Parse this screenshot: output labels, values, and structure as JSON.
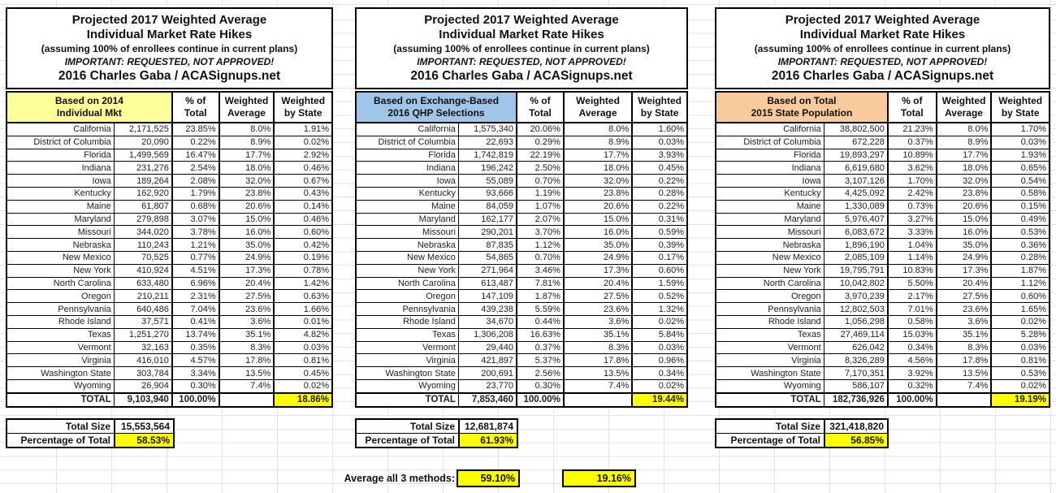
{
  "shared_title": {
    "line1": "Projected 2017 Weighted Average",
    "line2": "Individual Market Rate Hikes",
    "line3": "(assuming 100% of enrollees continue in current plans)",
    "line4": "IMPORTANT: REQUESTED, NOT APPROVED!",
    "line5": "2016 Charles Gaba / ACASignups.net"
  },
  "shared_columns": {
    "pct1": "% of",
    "pct2": "Total",
    "wavg1": "Weighted",
    "wavg2": "Average",
    "wstate1": "Weighted",
    "wstate2": "by State"
  },
  "colors": {
    "basis_yellow": "#ffff99",
    "basis_blue": "#9fc5e8",
    "basis_orange": "#f9cb9c",
    "highlight_yellow": "#ffff00"
  },
  "tables": [
    {
      "basis_line1": "Based on 2014",
      "basis_line2": "Individual Mkt",
      "basis_color": "#ffff99",
      "rows": [
        {
          "state": "California",
          "size": "2,171,525",
          "pct": "23.85%",
          "wavg": "8.0%",
          "wstate": "1.91%"
        },
        {
          "state": "District of Columbia",
          "size": "20,090",
          "pct": "0.22%",
          "wavg": "8.9%",
          "wstate": "0.02%"
        },
        {
          "state": "Florida",
          "size": "1,499,569",
          "pct": "16.47%",
          "wavg": "17.7%",
          "wstate": "2.92%"
        },
        {
          "state": "Indiana",
          "size": "231,276",
          "pct": "2.54%",
          "wavg": "18.0%",
          "wstate": "0.46%"
        },
        {
          "state": "Iowa",
          "size": "189,264",
          "pct": "2.08%",
          "wavg": "32.0%",
          "wstate": "0.67%"
        },
        {
          "state": "Kentucky",
          "size": "162,920",
          "pct": "1.79%",
          "wavg": "23.8%",
          "wstate": "0.43%"
        },
        {
          "state": "Maine",
          "size": "61,807",
          "pct": "0.68%",
          "wavg": "20.6%",
          "wstate": "0.14%"
        },
        {
          "state": "Maryland",
          "size": "279,898",
          "pct": "3.07%",
          "wavg": "15.0%",
          "wstate": "0.46%"
        },
        {
          "state": "Missouri",
          "size": "344,020",
          "pct": "3.78%",
          "wavg": "16.0%",
          "wstate": "0.60%"
        },
        {
          "state": "Nebraska",
          "size": "110,243",
          "pct": "1.21%",
          "wavg": "35.0%",
          "wstate": "0.42%"
        },
        {
          "state": "New Mexico",
          "size": "70,525",
          "pct": "0.77%",
          "wavg": "24.9%",
          "wstate": "0.19%"
        },
        {
          "state": "New York",
          "size": "410,924",
          "pct": "4.51%",
          "wavg": "17.3%",
          "wstate": "0.78%"
        },
        {
          "state": "North Carolina",
          "size": "633,480",
          "pct": "6.96%",
          "wavg": "20.4%",
          "wstate": "1.42%"
        },
        {
          "state": "Oregon",
          "size": "210,211",
          "pct": "2.31%",
          "wavg": "27.5%",
          "wstate": "0.63%"
        },
        {
          "state": "Pennsylvania",
          "size": "640,486",
          "pct": "7.04%",
          "wavg": "23.6%",
          "wstate": "1.66%"
        },
        {
          "state": "Rhode Island",
          "size": "37,571",
          "pct": "0.41%",
          "wavg": "3.6%",
          "wstate": "0.01%"
        },
        {
          "state": "Texas",
          "size": "1,251,270",
          "pct": "13.74%",
          "wavg": "35.1%",
          "wstate": "4.82%"
        },
        {
          "state": "Vermont",
          "size": "32,163",
          "pct": "0.35%",
          "wavg": "8.3%",
          "wstate": "0.03%"
        },
        {
          "state": "Virginia",
          "size": "416,010",
          "pct": "4.57%",
          "wavg": "17.8%",
          "wstate": "0.81%"
        },
        {
          "state": "Washington State",
          "size": "303,784",
          "pct": "3.34%",
          "wavg": "13.5%",
          "wstate": "0.45%"
        },
        {
          "state": "Wyoming",
          "size": "26,904",
          "pct": "0.30%",
          "wavg": "7.4%",
          "wstate": "0.02%"
        }
      ],
      "total": {
        "label": "TOTAL",
        "size": "9,103,940",
        "pct": "100.00%",
        "wavg": "",
        "wstate": "18.86%"
      },
      "summary": {
        "total_size_label": "Total Size",
        "total_size_value": "15,553,564",
        "pct_label": "Percentage of Total",
        "pct_value": "58.53%"
      }
    },
    {
      "basis_line1": "Based on Exchange-Based",
      "basis_line2": "2016 QHP Selections",
      "basis_color": "#9fc5e8",
      "rows": [
        {
          "state": "California",
          "size": "1,575,340",
          "pct": "20.06%",
          "wavg": "8.0%",
          "wstate": "1.60%"
        },
        {
          "state": "District of Columbia",
          "size": "22,693",
          "pct": "0.29%",
          "wavg": "8.9%",
          "wstate": "0.03%"
        },
        {
          "state": "Florida",
          "size": "1,742,819",
          "pct": "22.19%",
          "wavg": "17.7%",
          "wstate": "3.93%"
        },
        {
          "state": "Indiana",
          "size": "196,242",
          "pct": "2.50%",
          "wavg": "18.0%",
          "wstate": "0.45%"
        },
        {
          "state": "Iowa",
          "size": "55,089",
          "pct": "0.70%",
          "wavg": "32.0%",
          "wstate": "0.22%"
        },
        {
          "state": "Kentucky",
          "size": "93,666",
          "pct": "1.19%",
          "wavg": "23.8%",
          "wstate": "0.28%"
        },
        {
          "state": "Maine",
          "size": "84,059",
          "pct": "1.07%",
          "wavg": "20.6%",
          "wstate": "0.22%"
        },
        {
          "state": "Maryland",
          "size": "162,177",
          "pct": "2.07%",
          "wavg": "15.0%",
          "wstate": "0.31%"
        },
        {
          "state": "Missouri",
          "size": "290,201",
          "pct": "3.70%",
          "wavg": "16.0%",
          "wstate": "0.59%"
        },
        {
          "state": "Nebraska",
          "size": "87,835",
          "pct": "1.12%",
          "wavg": "35.0%",
          "wstate": "0.39%"
        },
        {
          "state": "New Mexico",
          "size": "54,865",
          "pct": "0.70%",
          "wavg": "24.9%",
          "wstate": "0.17%"
        },
        {
          "state": "New York",
          "size": "271,964",
          "pct": "3.46%",
          "wavg": "17.3%",
          "wstate": "0.60%"
        },
        {
          "state": "North Carolina",
          "size": "613,487",
          "pct": "7.81%",
          "wavg": "20.4%",
          "wstate": "1.59%"
        },
        {
          "state": "Oregon",
          "size": "147,109",
          "pct": "1.87%",
          "wavg": "27.5%",
          "wstate": "0.52%"
        },
        {
          "state": "Pennsylvania",
          "size": "439,238",
          "pct": "5.59%",
          "wavg": "23.6%",
          "wstate": "1.32%"
        },
        {
          "state": "Rhode Island",
          "size": "34,670",
          "pct": "0.44%",
          "wavg": "3.6%",
          "wstate": "0.02%"
        },
        {
          "state": "Texas",
          "size": "1,306,208",
          "pct": "16.63%",
          "wavg": "35.1%",
          "wstate": "5.84%"
        },
        {
          "state": "Vermont",
          "size": "29,440",
          "pct": "0.37%",
          "wavg": "8.3%",
          "wstate": "0.03%"
        },
        {
          "state": "Virginia",
          "size": "421,897",
          "pct": "5.37%",
          "wavg": "17.8%",
          "wstate": "0.96%"
        },
        {
          "state": "Washington State",
          "size": "200,691",
          "pct": "2.56%",
          "wavg": "13.5%",
          "wstate": "0.34%"
        },
        {
          "state": "Wyoming",
          "size": "23,770",
          "pct": "0.30%",
          "wavg": "7.4%",
          "wstate": "0.02%"
        }
      ],
      "total": {
        "label": "TOTAL",
        "size": "7,853,460",
        "pct": "100.00%",
        "wavg": "",
        "wstate": "19.44%"
      },
      "summary": {
        "total_size_label": "Total Size",
        "total_size_value": "12,681,874",
        "pct_label": "Percentage of Total",
        "pct_value": "61.93%"
      }
    },
    {
      "basis_line1": "Based on Total",
      "basis_line2": "2015 State Population",
      "basis_color": "#f9cb9c",
      "rows": [
        {
          "state": "California",
          "size": "38,802,500",
          "pct": "21.23%",
          "wavg": "8.0%",
          "wstate": "1.70%"
        },
        {
          "state": "District of Columbia",
          "size": "672,228",
          "pct": "0.37%",
          "wavg": "8.9%",
          "wstate": "0.03%"
        },
        {
          "state": "Florida",
          "size": "19,893,297",
          "pct": "10.89%",
          "wavg": "17.7%",
          "wstate": "1.93%"
        },
        {
          "state": "Indiana",
          "size": "6,619,680",
          "pct": "3.62%",
          "wavg": "18.0%",
          "wstate": "0.65%"
        },
        {
          "state": "Iowa",
          "size": "3,107,126",
          "pct": "1.70%",
          "wavg": "32.0%",
          "wstate": "0.54%"
        },
        {
          "state": "Kentucky",
          "size": "4,425,092",
          "pct": "2.42%",
          "wavg": "23.8%",
          "wstate": "0.58%"
        },
        {
          "state": "Maine",
          "size": "1,330,089",
          "pct": "0.73%",
          "wavg": "20.6%",
          "wstate": "0.15%"
        },
        {
          "state": "Maryland",
          "size": "5,976,407",
          "pct": "3.27%",
          "wavg": "15.0%",
          "wstate": "0.49%"
        },
        {
          "state": "Missouri",
          "size": "6,083,672",
          "pct": "3.33%",
          "wavg": "16.0%",
          "wstate": "0.53%"
        },
        {
          "state": "Nebraska",
          "size": "1,896,190",
          "pct": "1.04%",
          "wavg": "35.0%",
          "wstate": "0.36%"
        },
        {
          "state": "New Mexico",
          "size": "2,085,109",
          "pct": "1.14%",
          "wavg": "24.9%",
          "wstate": "0.28%"
        },
        {
          "state": "New York",
          "size": "19,795,791",
          "pct": "10.83%",
          "wavg": "17.3%",
          "wstate": "1.87%"
        },
        {
          "state": "North Carolina",
          "size": "10,042,802",
          "pct": "5.50%",
          "wavg": "20.4%",
          "wstate": "1.12%"
        },
        {
          "state": "Oregon",
          "size": "3,970,239",
          "pct": "2.17%",
          "wavg": "27.5%",
          "wstate": "0.60%"
        },
        {
          "state": "Pennsylvania",
          "size": "12,802,503",
          "pct": "7.01%",
          "wavg": "23.6%",
          "wstate": "1.65%"
        },
        {
          "state": "Rhode Island",
          "size": "1,056,298",
          "pct": "0.58%",
          "wavg": "3.6%",
          "wstate": "0.02%"
        },
        {
          "state": "Texas",
          "size": "27,469,114",
          "pct": "15.03%",
          "wavg": "35.1%",
          "wstate": "5.28%"
        },
        {
          "state": "Vermont",
          "size": "626,042",
          "pct": "0.34%",
          "wavg": "8.3%",
          "wstate": "0.03%"
        },
        {
          "state": "Virginia",
          "size": "8,326,289",
          "pct": "4.56%",
          "wavg": "17.8%",
          "wstate": "0.81%"
        },
        {
          "state": "Washington State",
          "size": "7,170,351",
          "pct": "3.92%",
          "wavg": "13.5%",
          "wstate": "0.53%"
        },
        {
          "state": "Wyoming",
          "size": "586,107",
          "pct": "0.32%",
          "wavg": "7.4%",
          "wstate": "0.02%"
        }
      ],
      "total": {
        "label": "TOTAL",
        "size": "182,736,926",
        "pct": "100.00%",
        "wavg": "",
        "wstate": "19.19%"
      },
      "summary": {
        "total_size_label": "Total Size",
        "total_size_value": "321,418,820",
        "pct_label": "Percentage of Total",
        "pct_value": "56.85%"
      }
    }
  ],
  "footer": {
    "label": "Average all 3 methods:",
    "value1": "59.10%",
    "value2": "19.16%"
  }
}
